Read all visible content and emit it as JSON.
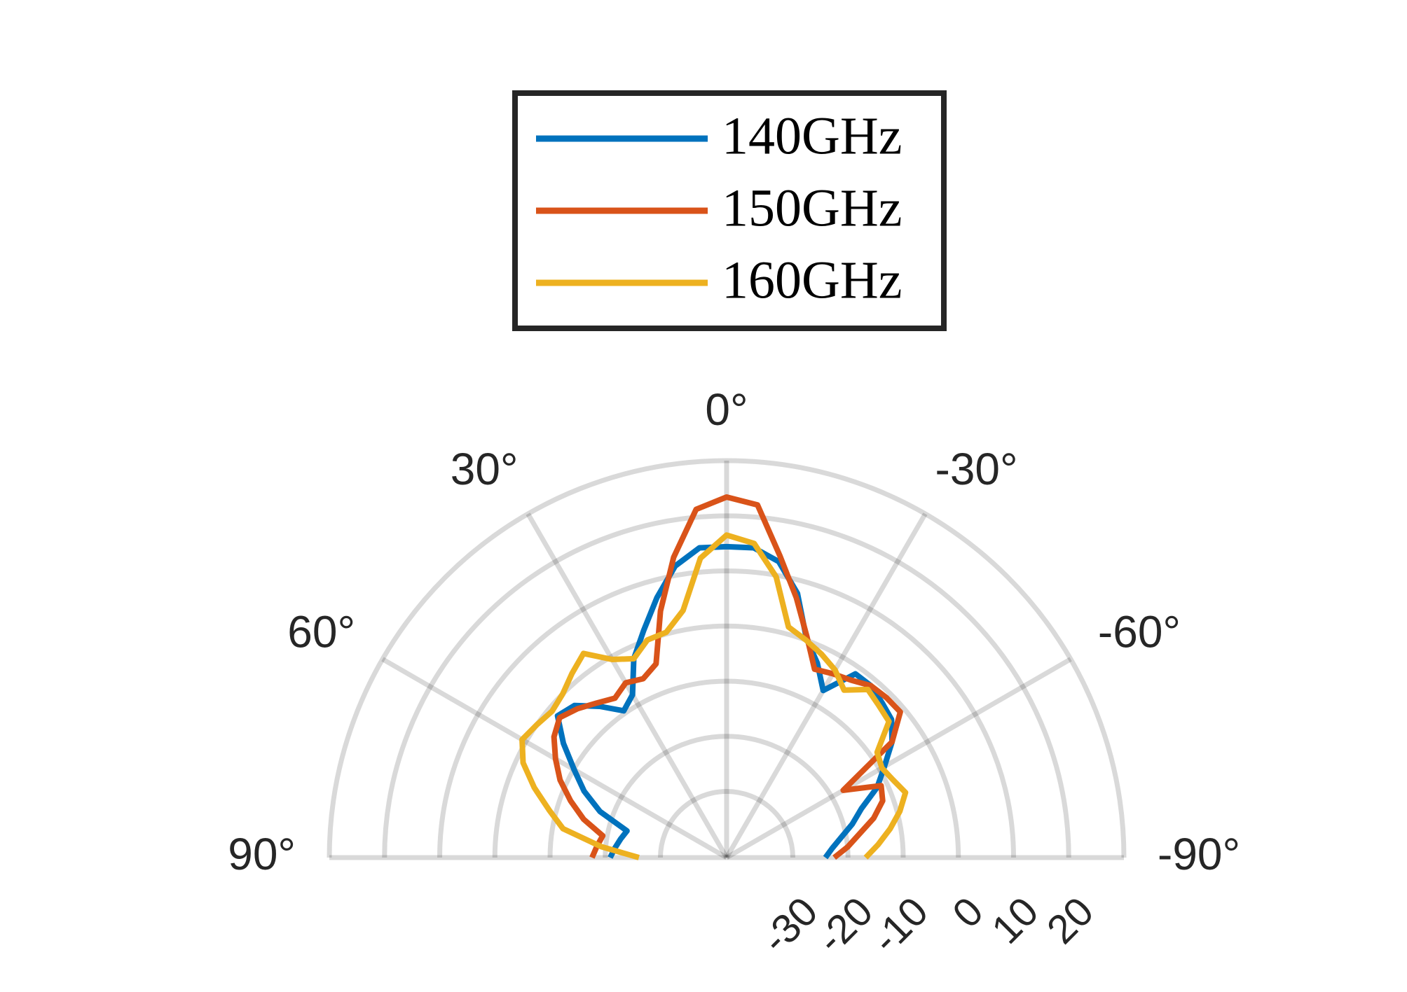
{
  "chart_data": {
    "type": "polar",
    "x": [
      90,
      85,
      80,
      75,
      70,
      65,
      60,
      55,
      50,
      45,
      40,
      35,
      30,
      25,
      20,
      15,
      10,
      5,
      0,
      -5,
      -10,
      -15,
      -20,
      -25,
      -30,
      -35,
      -40,
      -45,
      -50,
      -55,
      -60,
      -65,
      -70,
      -75,
      -80,
      -85,
      -90
    ],
    "series": [
      {
        "name": "140GHz",
        "color": "#0072bd",
        "values": [
          -20.9,
          -21.7,
          -22.5,
          -23.3,
          -17.6,
          -13.5,
          -10.1,
          -5.9,
          -2.0,
          -3.0,
          -6.2,
          -9.5,
          -7.9,
          -2.2,
          1.9,
          6.8,
          11.7,
          14.4,
          14.4,
          14.4,
          12.5,
          7.6,
          0.3,
          -3.1,
          -7.0,
          -1.3,
          -1.3,
          -2.2,
          -3.0,
          -5.4,
          -9.0,
          -11.9,
          -16.0,
          -18.4,
          -20.9,
          -22.8,
          -24.1
        ]
      },
      {
        "name": "150GHz",
        "color": "#d95319",
        "values": [
          -17.6,
          -18.4,
          -19.2,
          -15.2,
          -11.9,
          -8.7,
          -6.2,
          -3.8,
          -2.5,
          -3.8,
          -5.4,
          -6.7,
          -5.4,
          -6.2,
          -4.6,
          4.3,
          13.3,
          21.4,
          23.4,
          22.2,
          13.6,
          6.8,
          0.6,
          -4.3,
          -3.5,
          -2.7,
          -1.3,
          -1.0,
          -0.9,
          -5.4,
          -17.6,
          -11.1,
          -11.9,
          -14.4,
          -17.6,
          -20.0,
          -22.5
        ]
      },
      {
        "name": "160GHz",
        "color": "#edb120",
        "values": [
          -26.1,
          -19.2,
          -11.9,
          -8.7,
          -4.9,
          -1.3,
          0.8,
          0.0,
          -0.7,
          0.0,
          1.6,
          3.2,
          -0.5,
          -2.2,
          0.0,
          0.3,
          3.5,
          12.5,
          16.5,
          15.2,
          9.7,
          1.3,
          0.0,
          -1.3,
          -2.7,
          -4.9,
          -2.2,
          -3.0,
          -3.6,
          -8.7,
          -9.5,
          -8.7,
          -7.5,
          -9.5,
          -11.9,
          -14.4,
          -16.8
        ]
      }
    ],
    "rlim": [
      -42,
      30
    ],
    "rticks": [
      -30,
      -20,
      -10,
      0,
      10,
      20
    ],
    "thetaticks": [
      {
        "value": -90,
        "label": "-90°"
      },
      {
        "value": -60,
        "label": "-60°"
      },
      {
        "value": -30,
        "label": "-30°"
      },
      {
        "value": 0,
        "label": "0°"
      },
      {
        "value": 30,
        "label": "30°"
      },
      {
        "value": 60,
        "label": "60°"
      },
      {
        "value": 90,
        "label": "90°"
      }
    ],
    "grid": true,
    "legend": "top"
  }
}
